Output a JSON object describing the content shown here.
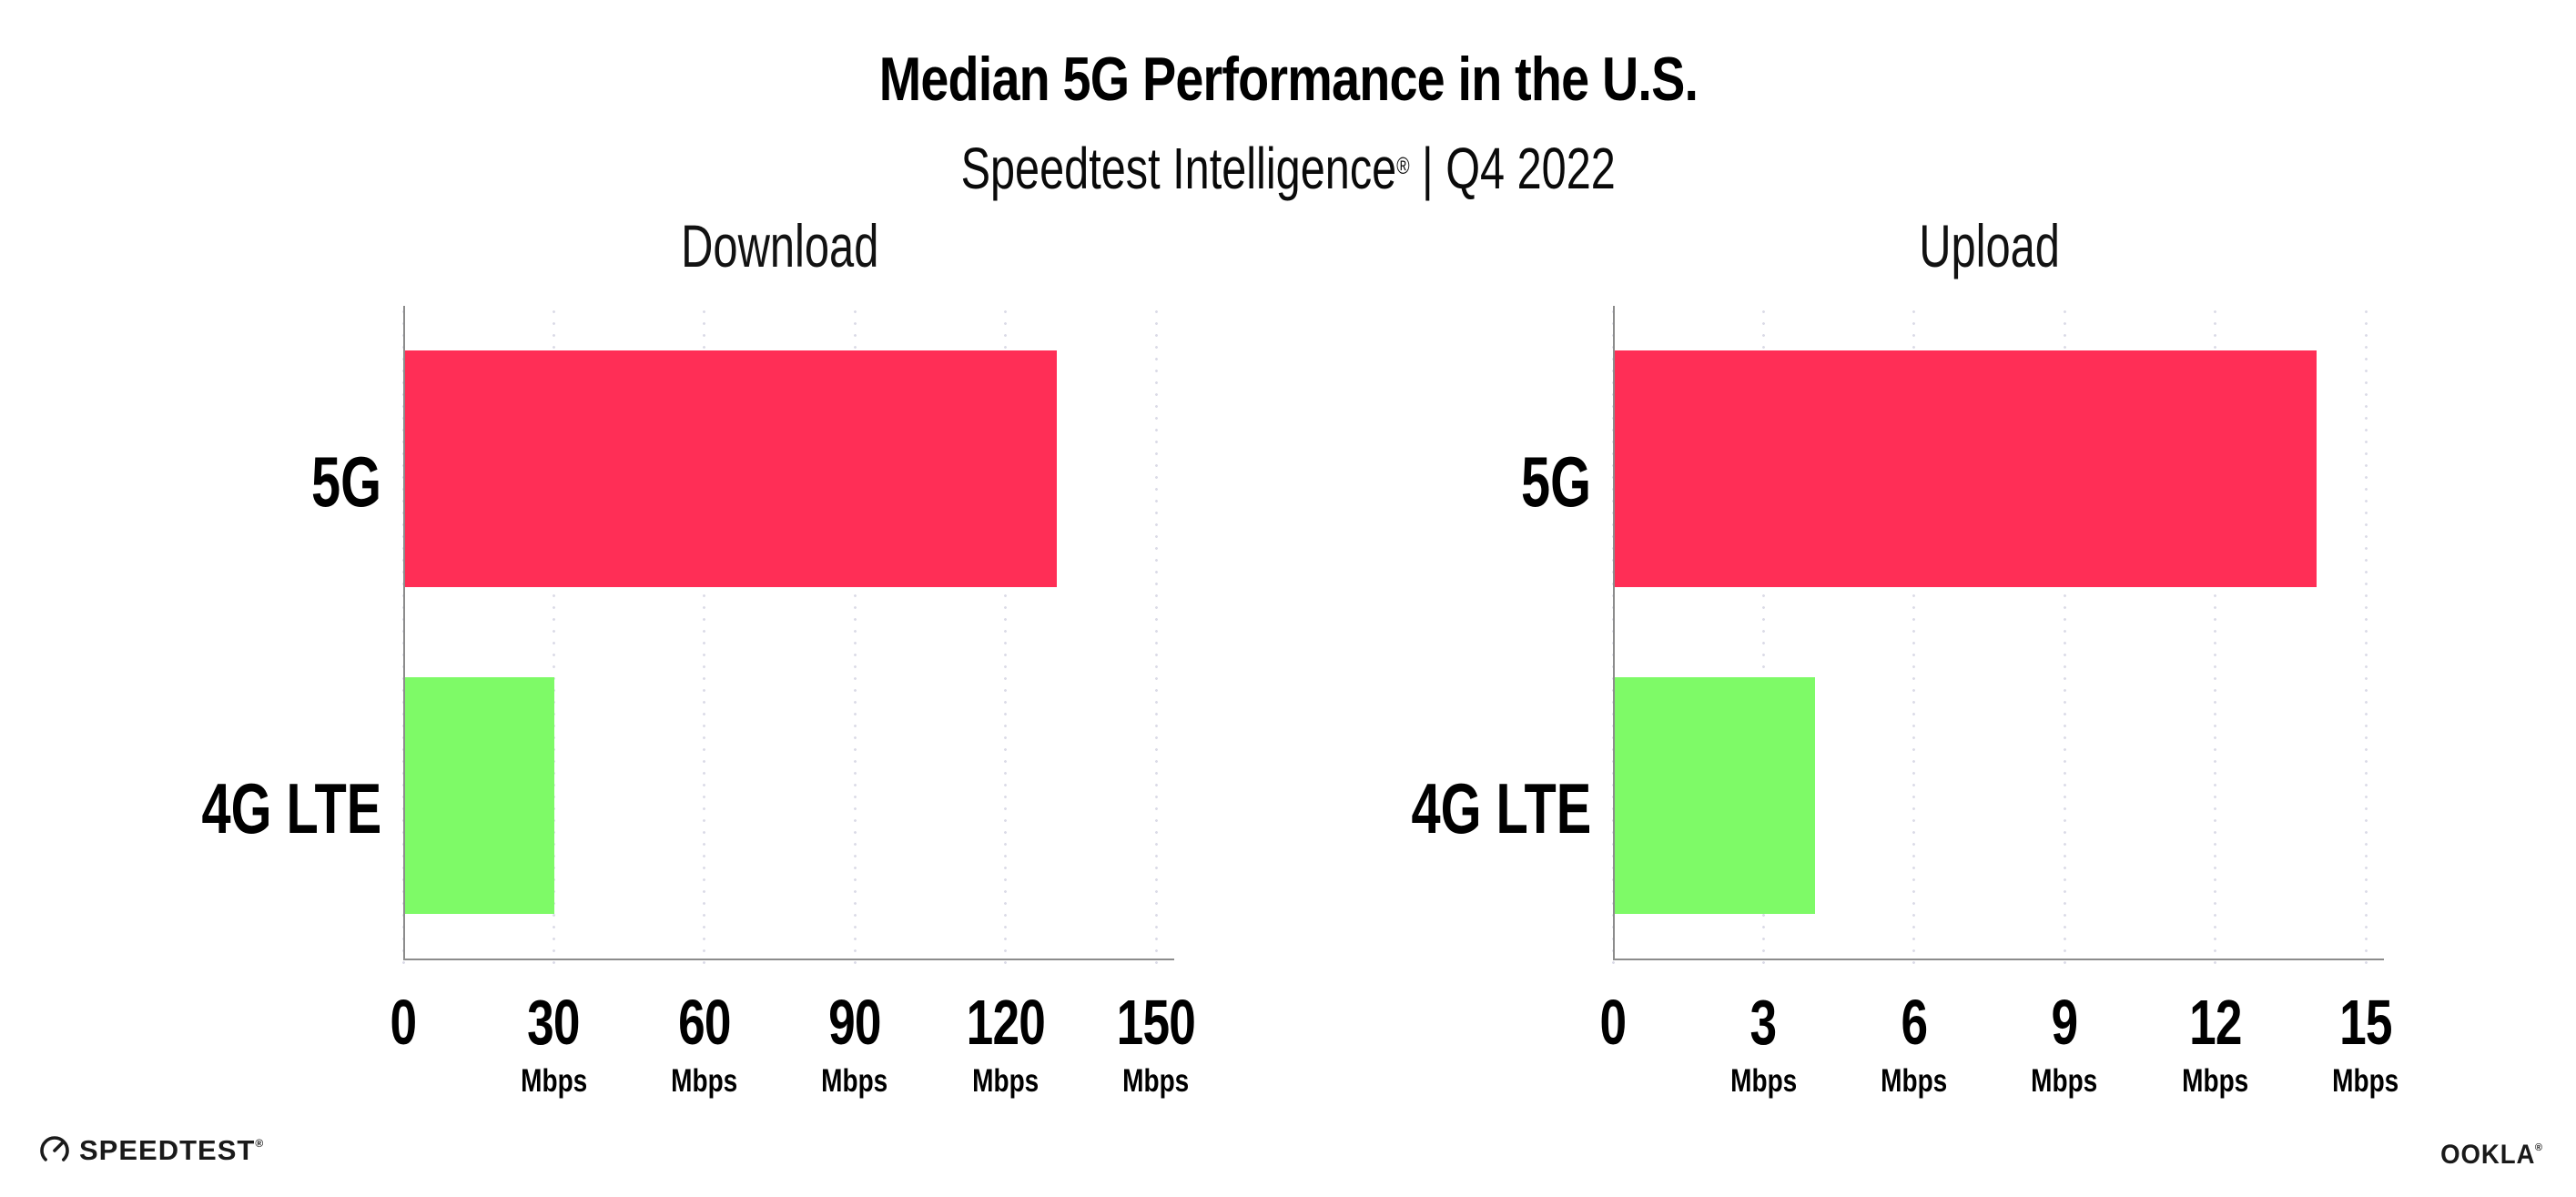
{
  "header": {
    "title": "Median 5G Performance in the U.S.",
    "subtitle_brand": "Speedtest Intelligence",
    "subtitle_reg": "®",
    "subtitle_rest": " | Q4 2022"
  },
  "chart_data": [
    {
      "type": "bar",
      "orientation": "horizontal",
      "title": "Download",
      "categories": [
        "5G",
        "4G LTE"
      ],
      "values": [
        130,
        30
      ],
      "unit": "Mbps",
      "xlim": [
        0,
        150
      ],
      "ticks": [
        0,
        30,
        60,
        90,
        120,
        150
      ],
      "bar_colors": [
        "#FF2E56",
        "#7EFA67"
      ],
      "grid": "dotted-vertical",
      "legend": "none"
    },
    {
      "type": "bar",
      "orientation": "horizontal",
      "title": "Upload",
      "categories": [
        "5G",
        "4G LTE"
      ],
      "values": [
        14,
        4
      ],
      "unit": "Mbps",
      "xlim": [
        0,
        15
      ],
      "ticks": [
        0,
        3,
        6,
        9,
        12,
        15
      ],
      "bar_colors": [
        "#FF2E56",
        "#7EFA67"
      ],
      "grid": "dotted-vertical",
      "legend": "none"
    }
  ],
  "footer": {
    "speedtest_label": "SPEEDTEST",
    "speedtest_reg": "®",
    "speedtest_icon": "speedtest-gauge-icon",
    "ookla_label": "OOKLA",
    "ookla_reg": "®"
  },
  "colors": {
    "bar_5g": "#FF2E56",
    "bar_4g_lte": "#7EFA67",
    "axis": "#8C8C8C",
    "grid_dot": "#DBDBE7",
    "text": "#000000",
    "background": "#FFFFFF"
  }
}
